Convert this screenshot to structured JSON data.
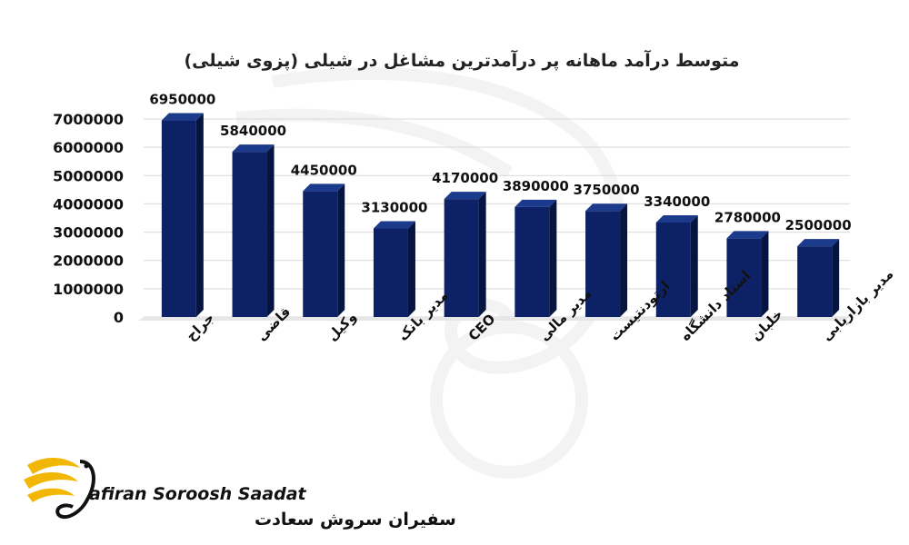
{
  "chart_data": {
    "type": "bar",
    "title": "متوسط درآمد ماهانه پر درآمدترین مشاغل در شیلی (پزوی شیلی)",
    "categories": [
      "جراح",
      "قاضی",
      "وکیل",
      "مدیر بانک",
      "CEO",
      "مدیر مالی",
      "ارتودنتیست",
      "استاد دانشگاه",
      "خلبان",
      "مدیر بازاریابی"
    ],
    "values": [
      6950000,
      5840000,
      4450000,
      3130000,
      4170000,
      3890000,
      3750000,
      3340000,
      2780000,
      2500000
    ],
    "value_labels": [
      "6950000",
      "5840000",
      "4450000",
      "3130000",
      "4170000",
      "3890000",
      "3750000",
      "3340000",
      "2780000",
      "2500000"
    ],
    "ylim": [
      0,
      7000000
    ],
    "y_ticks": [
      0,
      1000000,
      2000000,
      3000000,
      4000000,
      5000000,
      6000000,
      7000000
    ],
    "y_tick_labels": [
      "0",
      "1000000",
      "2000000",
      "3000000",
      "4000000",
      "5000000",
      "6000000",
      "7000000"
    ],
    "grid": true,
    "bar_color": "#0d2266",
    "bar_side_color": "#061440",
    "bar_top_color": "#1c3a8c"
  },
  "logo": {
    "name_en": "afiran Soroosh Saadat",
    "name_fa": "سفیران سروش سعادت",
    "accent_color": "#f2b705"
  }
}
